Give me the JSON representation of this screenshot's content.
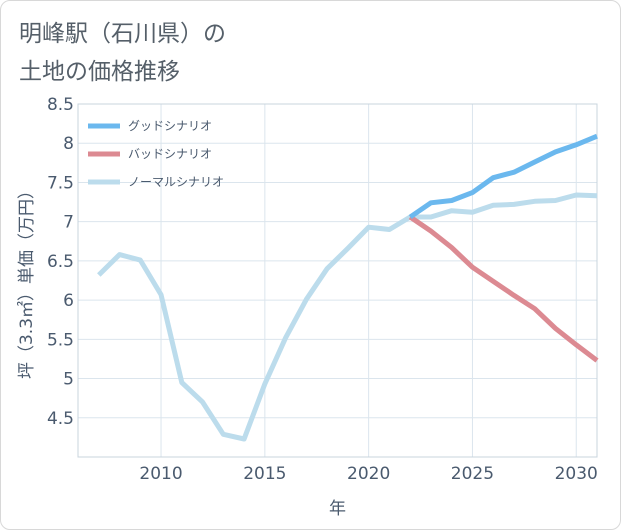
{
  "title_line1": "明峰駅（石川県）の",
  "title_line2": "土地の価格推移",
  "chart_data": {
    "type": "line",
    "title": "明峰駅（石川県）の土地の価格推移",
    "xlabel": "年",
    "ylabel": "坪（3.3㎡）単価（万円）",
    "xlim": [
      2006,
      2031
    ],
    "ylim": [
      4.0,
      8.5
    ],
    "x_ticks": [
      2010,
      2015,
      2020,
      2025,
      2030
    ],
    "x_tick_labels": [
      "2010",
      "2015",
      "2020",
      "2025",
      "2030"
    ],
    "y_ticks": [
      4.5,
      5,
      5.5,
      6,
      6.5,
      7,
      7.5,
      8,
      8.5
    ],
    "y_tick_labels": [
      "4.5",
      "5",
      "5.5",
      "6",
      "6.5",
      "7",
      "7.5",
      "8",
      "8.5"
    ],
    "legend_position": "top-left",
    "series": [
      {
        "name": "グッドシナリオ",
        "color": "#6bb8ee",
        "x": [
          2022,
          2023,
          2024,
          2025,
          2026,
          2027,
          2028,
          2029,
          2030,
          2031
        ],
        "values": [
          7.06,
          7.24,
          7.27,
          7.37,
          7.56,
          7.63,
          7.76,
          7.89,
          7.98,
          8.09
        ]
      },
      {
        "name": "バッドシナリオ",
        "color": "#dc8a92",
        "x": [
          2022,
          2023,
          2024,
          2025,
          2026,
          2027,
          2028,
          2029,
          2030,
          2031
        ],
        "values": [
          7.06,
          6.88,
          6.67,
          6.42,
          6.24,
          6.06,
          5.89,
          5.64,
          5.43,
          5.23
        ]
      },
      {
        "name": "ノーマルシナリオ",
        "color": "#bcdcec",
        "x": [
          2007,
          2008,
          2009,
          2010,
          2011,
          2012,
          2013,
          2014,
          2015,
          2016,
          2017,
          2018,
          2019,
          2020,
          2021,
          2022,
          2023,
          2024,
          2025,
          2026,
          2027,
          2028,
          2029,
          2030,
          2031
        ],
        "values": [
          6.32,
          6.58,
          6.51,
          6.07,
          4.95,
          4.7,
          4.29,
          4.23,
          4.93,
          5.52,
          6.01,
          6.4,
          6.66,
          6.93,
          6.9,
          7.06,
          7.06,
          7.14,
          7.12,
          7.21,
          7.22,
          7.26,
          7.27,
          7.34,
          7.33
        ]
      }
    ]
  }
}
